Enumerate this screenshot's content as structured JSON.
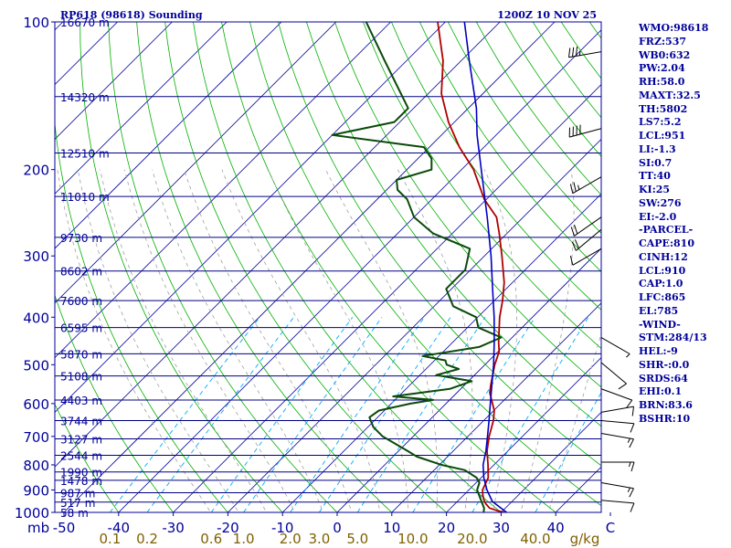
{
  "header": {
    "station": "RP618 (98618) Sounding",
    "time": "1200Z 10 NOV 25"
  },
  "indices": [
    "WMO:98618",
    "FRZ:537",
    "WB0:632",
    "PW:2.04",
    "RH:58.0",
    "MAXT:32.5",
    "TH:5802",
    "LS7:5.2",
    "LCL:951",
    "LI:-1.3",
    "SI:0.7",
    "TT:40",
    "KI:25",
    "SW:276",
    "EI:-2.0",
    "-PARCEL-",
    "CAPE:810",
    "CINH:12",
    "LCL:910",
    "CAP:1.0",
    "LFC:865",
    "EL:785",
    "-WIND-",
    "STM:284/13",
    "HEL:-9",
    "SHR-:0.0",
    "SRDS:64",
    "EHI:0.1",
    "BRN:83.6",
    "BSHR:10"
  ],
  "colors": {
    "axis": "#00009a",
    "isotherm": "#0000a0",
    "isobar": "#000080",
    "dry_adiabat": "#00b000",
    "moist_adiabat": "#a0a0a0",
    "mixing_ratio": "#00aaff",
    "temperature": "#b00000",
    "dewpoint": "#0a4a0a",
    "parcel": "#0000c0",
    "wind_barb": "#000000",
    "mixing_label": "#806000"
  },
  "chart_data": {
    "type": "line",
    "title": "RP618 (98618) Sounding",
    "xlabel": "",
    "ylabel": "mb",
    "pressure_ticks": [
      100,
      200,
      300,
      400,
      500,
      600,
      700,
      800,
      900,
      1000
    ],
    "pressure_labels": [
      "100",
      "200",
      "300",
      "400",
      "500",
      "600",
      "700",
      "800",
      "900",
      "1000"
    ],
    "axis_unit": "mb",
    "temperature_ticks": [
      -50,
      -40,
      -30,
      -20,
      -10,
      0,
      10,
      20,
      30,
      40,
      50
    ],
    "temperature_labels": [
      "-50",
      "-40",
      "-30",
      "-20",
      "-10",
      "0",
      "10",
      "20",
      "30",
      "40",
      "C"
    ],
    "ylim": [
      1000,
      100
    ],
    "height_levels": [
      {
        "p": 100,
        "h": "16670 m"
      },
      {
        "p": 142,
        "h": "14320 m"
      },
      {
        "p": 185,
        "h": "12510 m"
      },
      {
        "p": 227,
        "h": "11010 m"
      },
      {
        "p": 275,
        "h": "9730 m"
      },
      {
        "p": 322,
        "h": "8602 m"
      },
      {
        "p": 370,
        "h": "7600 m"
      },
      {
        "p": 420,
        "h": "6595 m"
      },
      {
        "p": 475,
        "h": "5870 m"
      },
      {
        "p": 527,
        "h": "5108 m"
      },
      {
        "p": 590,
        "h": "4403 m"
      },
      {
        "p": 650,
        "h": "3744 m"
      },
      {
        "p": 708,
        "h": "3127 m"
      },
      {
        "p": 765,
        "h": "2544 m"
      },
      {
        "p": 827,
        "h": "1990 m"
      },
      {
        "p": 860,
        "h": "1478 m"
      },
      {
        "p": 912,
        "h": "987 m"
      },
      {
        "p": 953,
        "h": "517 m"
      },
      {
        "p": 1000,
        "h": "58 m"
      }
    ],
    "mixing_ratio_values": [
      0.1,
      0.2,
      0.6,
      1.0,
      2.0,
      3.0,
      5.0,
      10.0,
      20.0,
      40.0
    ],
    "mixing_ratio_labels": [
      "0.1",
      "0.2",
      "0.6",
      "1.0",
      "2.0",
      "3.0",
      "5.0",
      "10.0",
      "20.0",
      "40.0"
    ],
    "mixing_ratio_unit": "g/kg",
    "series": [
      {
        "name": "",
        "kind": "temperature",
        "points": [
          {
            "p": 1000,
            "t": 30.5
          },
          {
            "p": 990,
            "t": 28.7
          },
          {
            "p": 980,
            "t": 27.1
          },
          {
            "p": 960,
            "t": 25.6
          },
          {
            "p": 940,
            "t": 24.4
          },
          {
            "p": 920,
            "t": 23.4
          },
          {
            "p": 900,
            "t": 22.5
          },
          {
            "p": 870,
            "t": 21.8
          },
          {
            "p": 850,
            "t": 21.3
          },
          {
            "p": 800,
            "t": 18.9
          },
          {
            "p": 750,
            "t": 16.2
          },
          {
            "p": 700,
            "t": 13.9
          },
          {
            "p": 650,
            "t": 11.8
          },
          {
            "p": 620,
            "t": 10.1
          },
          {
            "p": 600,
            "t": 8.5
          },
          {
            "p": 570,
            "t": 6.0
          },
          {
            "p": 550,
            "t": 4.8
          },
          {
            "p": 500,
            "t": 1.8
          },
          {
            "p": 470,
            "t": 0.2
          },
          {
            "p": 450,
            "t": -1.6
          },
          {
            "p": 400,
            "t": -6.0
          },
          {
            "p": 370,
            "t": -8.5
          },
          {
            "p": 340,
            "t": -11.5
          },
          {
            "p": 300,
            "t": -16.8
          },
          {
            "p": 270,
            "t": -21.4
          },
          {
            "p": 250,
            "t": -24.9
          },
          {
            "p": 230,
            "t": -30.4
          },
          {
            "p": 200,
            "t": -37.8
          },
          {
            "p": 180,
            "t": -44.5
          },
          {
            "p": 160,
            "t": -51.1
          },
          {
            "p": 140,
            "t": -57.6
          },
          {
            "p": 120,
            "t": -63.3
          },
          {
            "p": 100,
            "t": -71.4
          }
        ]
      },
      {
        "name": "",
        "kind": "dewpoint",
        "points": [
          {
            "p": 1000,
            "t": 26.8
          },
          {
            "p": 980,
            "t": 26.1
          },
          {
            "p": 950,
            "t": 24.4
          },
          {
            "p": 900,
            "t": 21.5
          },
          {
            "p": 870,
            "t": 20.6
          },
          {
            "p": 850,
            "t": 19.2
          },
          {
            "p": 820,
            "t": 15.6
          },
          {
            "p": 800,
            "t": 10.4
          },
          {
            "p": 770,
            "t": 4.4
          },
          {
            "p": 750,
            "t": 1.7
          },
          {
            "p": 700,
            "t": -5.6
          },
          {
            "p": 670,
            "t": -9.0
          },
          {
            "p": 640,
            "t": -11.5
          },
          {
            "p": 620,
            "t": -11.0
          },
          {
            "p": 600,
            "t": -6.5
          },
          {
            "p": 590,
            "t": -3.0
          },
          {
            "p": 580,
            "t": -11.0
          },
          {
            "p": 560,
            "t": -2.0
          },
          {
            "p": 540,
            "t": 0.6
          },
          {
            "p": 525,
            "t": -7.0
          },
          {
            "p": 510,
            "t": -4.0
          },
          {
            "p": 500,
            "t": -7.0
          },
          {
            "p": 490,
            "t": -8.0
          },
          {
            "p": 480,
            "t": -13.0
          },
          {
            "p": 460,
            "t": -4.3
          },
          {
            "p": 440,
            "t": -2.0
          },
          {
            "p": 420,
            "t": -8.0
          },
          {
            "p": 400,
            "t": -10.3
          },
          {
            "p": 380,
            "t": -16.5
          },
          {
            "p": 350,
            "t": -21.0
          },
          {
            "p": 320,
            "t": -21.0
          },
          {
            "p": 290,
            "t": -24.0
          },
          {
            "p": 270,
            "t": -33.5
          },
          {
            "p": 250,
            "t": -40.0
          },
          {
            "p": 230,
            "t": -44.5
          },
          {
            "p": 220,
            "t": -48.0
          },
          {
            "p": 210,
            "t": -50.0
          },
          {
            "p": 200,
            "t": -45.5
          },
          {
            "p": 190,
            "t": -47.5
          },
          {
            "p": 180,
            "t": -51.0
          },
          {
            "p": 170,
            "t": -70.0
          },
          {
            "p": 160,
            "t": -61.0
          },
          {
            "p": 150,
            "t": -61.0
          },
          {
            "p": 120,
            "t": -74.0
          },
          {
            "p": 100,
            "t": -84.5
          }
        ]
      },
      {
        "name": "",
        "kind": "parcel",
        "points": [
          {
            "p": 1000,
            "t": 31.0
          },
          {
            "p": 950,
            "t": 26.4
          },
          {
            "p": 900,
            "t": 23.3
          },
          {
            "p": 850,
            "t": 20.5
          },
          {
            "p": 800,
            "t": 18.0
          },
          {
            "p": 750,
            "t": 16.0
          },
          {
            "p": 700,
            "t": 13.6
          },
          {
            "p": 650,
            "t": 11.0
          },
          {
            "p": 600,
            "t": 8.1
          },
          {
            "p": 550,
            "t": 5.0
          },
          {
            "p": 500,
            "t": 1.6
          },
          {
            "p": 450,
            "t": -2.4
          },
          {
            "p": 400,
            "t": -7.0
          },
          {
            "p": 350,
            "t": -12.5
          },
          {
            "p": 300,
            "t": -18.8
          },
          {
            "p": 250,
            "t": -26.6
          },
          {
            "p": 200,
            "t": -36.4
          },
          {
            "p": 170,
            "t": -43.5
          },
          {
            "p": 150,
            "t": -48.5
          },
          {
            "p": 120,
            "t": -58.5
          },
          {
            "p": 100,
            "t": -66.5
          }
        ]
      }
    ],
    "wind_barbs": [
      {
        "p": 115,
        "dir": 260,
        "speed": 35
      },
      {
        "p": 165,
        "dir": 255,
        "speed": 40
      },
      {
        "p": 207,
        "dir": 240,
        "speed": 25
      },
      {
        "p": 250,
        "dir": 235,
        "speed": 20
      },
      {
        "p": 265,
        "dir": 230,
        "speed": 20
      },
      {
        "p": 290,
        "dir": 240,
        "speed": 10
      },
      {
        "p": 440,
        "dir": 120,
        "speed": 5
      },
      {
        "p": 495,
        "dir": 130,
        "speed": 10
      },
      {
        "p": 560,
        "dir": 110,
        "speed": 10
      },
      {
        "p": 625,
        "dir": 80,
        "speed": 10
      },
      {
        "p": 650,
        "dir": 95,
        "speed": 10
      },
      {
        "p": 690,
        "dir": 100,
        "speed": 15
      },
      {
        "p": 790,
        "dir": 90,
        "speed": 15
      },
      {
        "p": 870,
        "dir": 100,
        "speed": 15
      },
      {
        "p": 945,
        "dir": 95,
        "speed": 10
      }
    ]
  }
}
